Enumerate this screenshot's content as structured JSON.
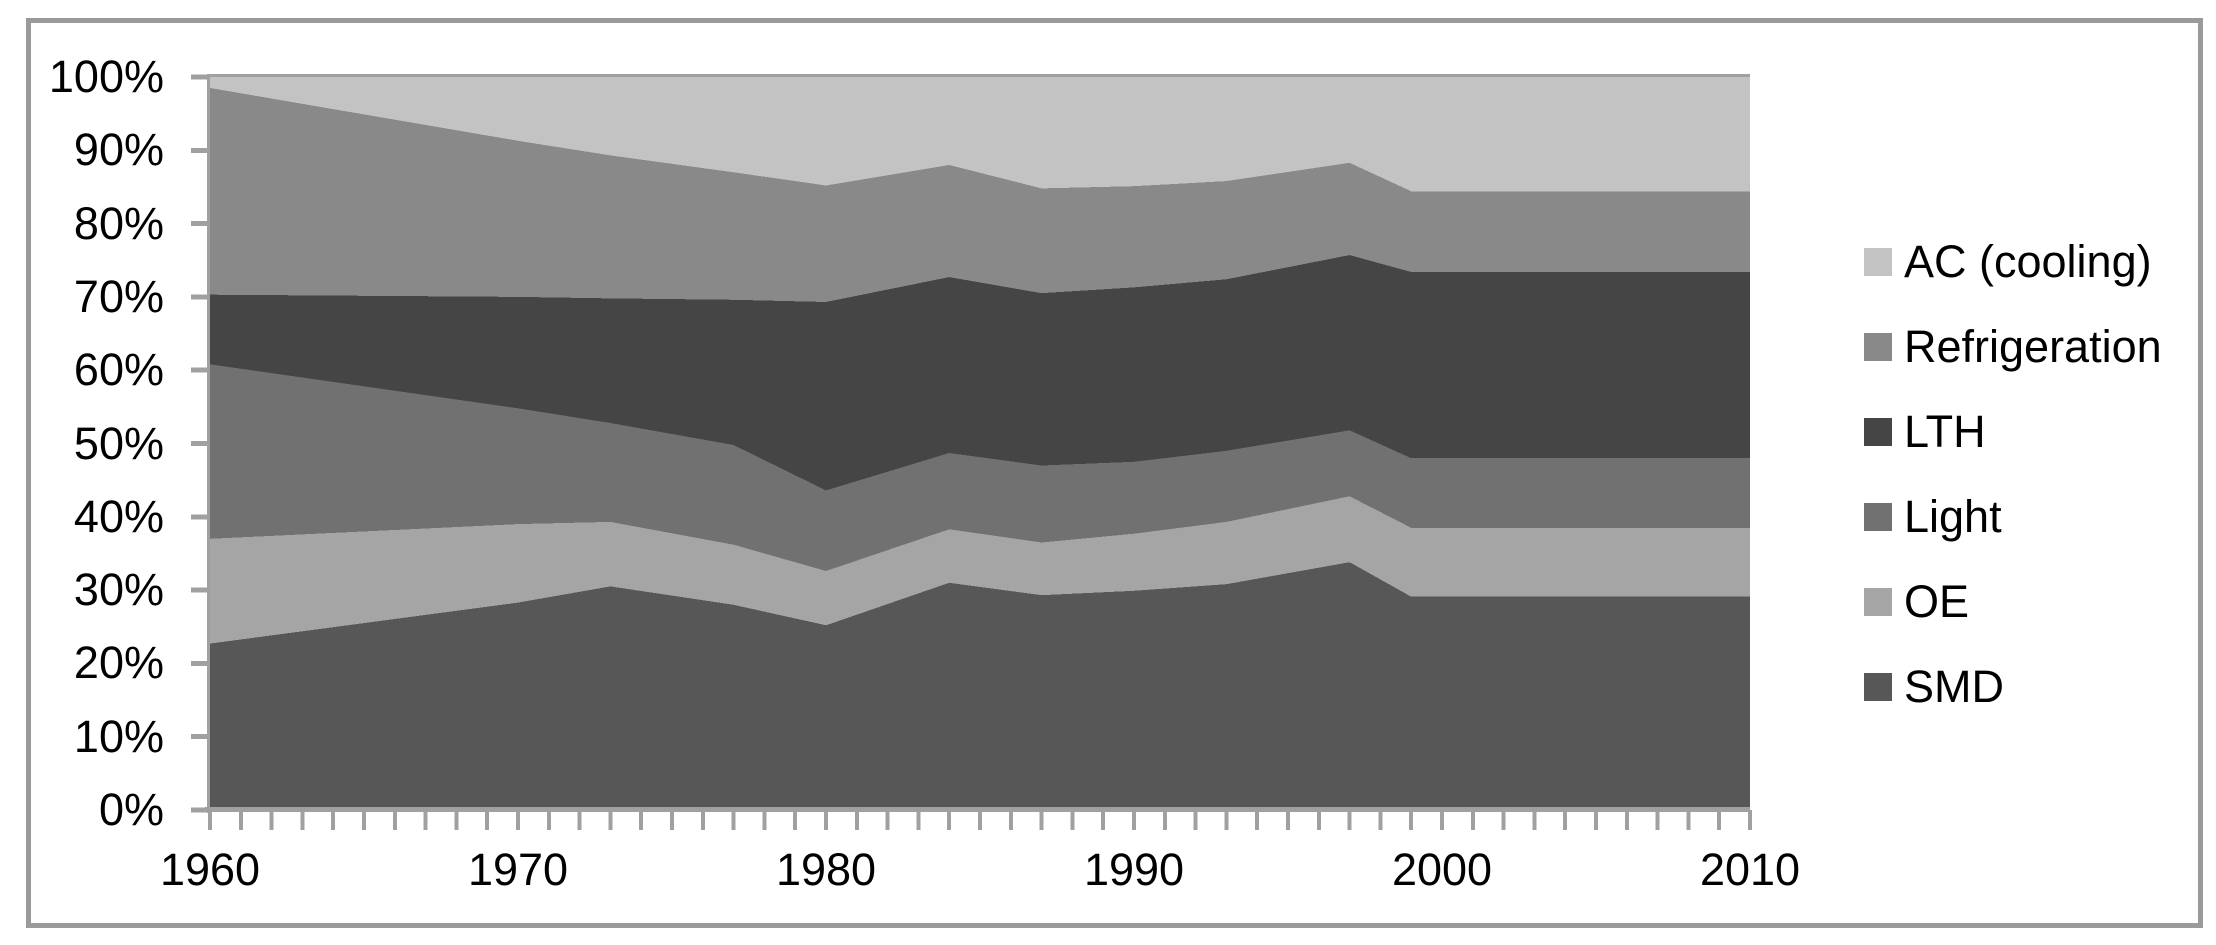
{
  "window": {
    "background_color": "#ffffff",
    "frame_border_color": "#9a9a9a"
  },
  "chart_data": {
    "type": "area",
    "stacked": true,
    "stack_total": 100,
    "title": "",
    "xlabel": "",
    "ylabel": "",
    "xlim": [
      1960,
      2010
    ],
    "ylim": [
      0,
      100
    ],
    "x": [
      1960,
      1970,
      1973,
      1977,
      1980,
      1984,
      1987,
      1990,
      1993,
      1997,
      1999,
      2010
    ],
    "series": [
      {
        "name": "SMD",
        "color": "#575757",
        "values": [
          22.7,
          28.3,
          30.5,
          28.0,
          25.2,
          31.0,
          29.3,
          29.9,
          30.8,
          33.8,
          29.1,
          29.1
        ]
      },
      {
        "name": "OE",
        "color": "#a5a5a5",
        "values": [
          14.3,
          10.7,
          8.8,
          8.2,
          7.4,
          7.3,
          7.2,
          7.8,
          8.5,
          9.0,
          9.4,
          9.4
        ]
      },
      {
        "name": "Light",
        "color": "#717171",
        "values": [
          23.8,
          15.8,
          13.5,
          13.6,
          11.0,
          10.4,
          10.5,
          9.8,
          9.7,
          9.0,
          9.5,
          9.5
        ]
      },
      {
        "name": "LTH",
        "color": "#454545",
        "values": [
          9.5,
          15.2,
          17.0,
          19.8,
          25.7,
          24.0,
          23.5,
          23.8,
          23.4,
          23.9,
          25.4,
          25.4
        ]
      },
      {
        "name": "Refrigeration",
        "color": "#898989",
        "values": [
          28.2,
          21.3,
          19.5,
          17.4,
          15.9,
          15.3,
          14.3,
          13.8,
          13.4,
          12.6,
          11.0,
          11.0
        ]
      },
      {
        "name": "AC (cooling)",
        "color": "#c3c3c3",
        "values": [
          1.5,
          8.7,
          10.7,
          13.0,
          14.8,
          12.0,
          15.2,
          14.9,
          14.2,
          11.7,
          15.6,
          15.6
        ]
      }
    ],
    "series_order": "bottom-to-top",
    "y_tick_labels": [
      "0%",
      "10%",
      "20%",
      "30%",
      "40%",
      "50%",
      "60%",
      "70%",
      "80%",
      "90%",
      "100%"
    ],
    "x_tick_labels": [
      "1960",
      "1970",
      "1980",
      "1990",
      "2000",
      "2010"
    ],
    "x_major_tick_interval": 10,
    "x_minor_tick_interval": 1,
    "grid": "top-line-only",
    "axis_color": "#a0a0a0",
    "text_color": "#000000",
    "legend_position": "right"
  },
  "legend": {
    "items": [
      {
        "label": "AC (cooling)",
        "series": "AC (cooling)"
      },
      {
        "label": "Refrigeration",
        "series": "Refrigeration"
      },
      {
        "label": "LTH",
        "series": "LTH"
      },
      {
        "label": "Light",
        "series": "Light"
      },
      {
        "label": "OE",
        "series": "OE"
      },
      {
        "label": "SMD",
        "series": "SMD"
      }
    ]
  }
}
